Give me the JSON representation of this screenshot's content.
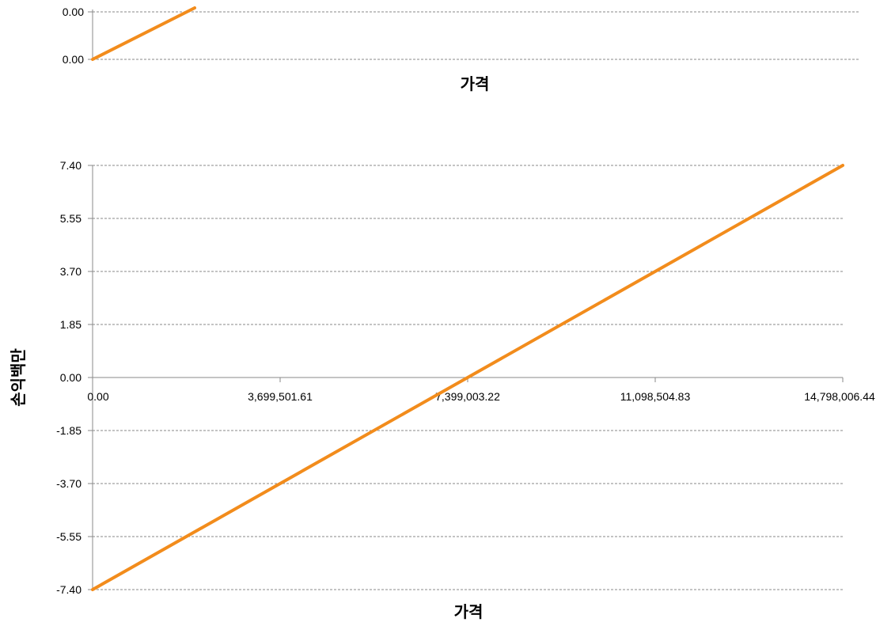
{
  "chart_data": [
    {
      "type": "line",
      "title": "",
      "xlabel": "가격",
      "ylabel": "",
      "y_tick_labels": [
        "0.00",
        "0.00"
      ],
      "series": [
        {
          "color": "#f28c1c",
          "x": [
            0,
            2000000
          ],
          "y": [
            0.0,
            1.0
          ],
          "note_values_normalized_to_top_tick": true
        }
      ],
      "grid": true,
      "cropped": "top"
    },
    {
      "type": "line",
      "title": "",
      "xlabel": "가격",
      "ylabel": "손익백만",
      "xlim": [
        0,
        14798006.44
      ],
      "ylim": [
        -7.4,
        7.4
      ],
      "x_tick_labels": [
        "0.00",
        "3,699,501.61",
        "7,399,003.22",
        "11,098,504.83",
        "14,798,006.44"
      ],
      "y_tick_labels": [
        "7.40",
        "5.55",
        "3.70",
        "1.85",
        "0.00",
        "-1.85",
        "-3.70",
        "-5.55",
        "-7.40"
      ],
      "series": [
        {
          "color": "#f28c1c",
          "x": [
            0,
            14798006.44
          ],
          "y": [
            -7.4,
            7.4
          ]
        }
      ],
      "grid": true
    }
  ]
}
